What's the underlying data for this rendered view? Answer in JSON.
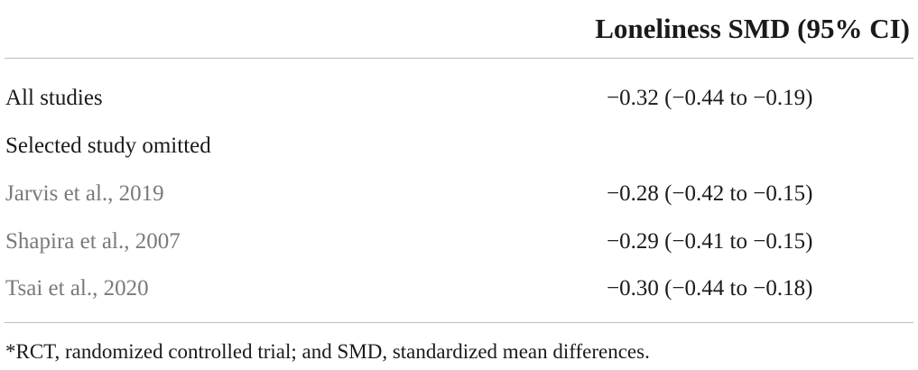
{
  "table": {
    "header": {
      "title": "Loneliness SMD (95% CI)"
    },
    "rows": [
      [
        "All studies",
        "−0.32 (−0.44 to −0.19)"
      ],
      [
        "Selected study omitted"
      ],
      [
        "Jarvis et al., 2019",
        "−0.28 (−0.42 to −0.15)"
      ],
      [
        "Shapira et al., 2007",
        "−0.29 (−0.41 to −0.15)"
      ],
      [
        "Tsai et al., 2020",
        "−0.30 (−0.44 to −0.18)"
      ]
    ],
    "footnote": "*RCT, randomized controlled trial; and SMD, standardized mean differences."
  }
}
